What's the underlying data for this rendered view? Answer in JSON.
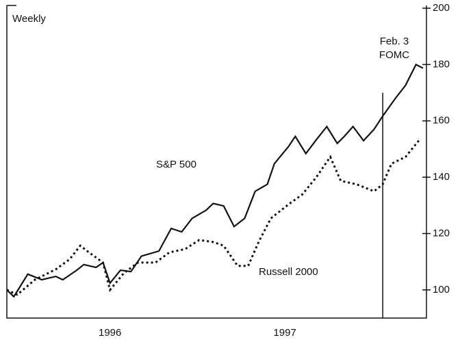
{
  "chart_data": {
    "type": "line",
    "title": "Weekly",
    "series": [
      {
        "name": "S&P 500",
        "color": "#111",
        "dash": "solid",
        "x": [
          1995.91,
          1995.95,
          1996.03,
          1996.11,
          1996.19,
          1996.23,
          1996.31,
          1996.35,
          1996.42,
          1996.46,
          1996.5,
          1996.56,
          1996.62,
          1996.68,
          1996.78,
          1996.85,
          1996.91,
          1996.97,
          1997.05,
          1997.09,
          1997.15,
          1997.21,
          1997.27,
          1997.33,
          1997.4,
          1997.44,
          1997.52,
          1997.56,
          1997.62,
          1997.68,
          1997.74,
          1997.8,
          1997.84,
          1997.89,
          1997.95,
          1998.01,
          1998.06,
          1998.13,
          1998.19,
          1998.25,
          1998.29
        ],
        "values": [
          100,
          97.6,
          105.6,
          103.6,
          104.8,
          103.6,
          107,
          109,
          108,
          109.7,
          102.4,
          107,
          106.5,
          112,
          113.8,
          121.8,
          120.6,
          125.4,
          128.3,
          130.7,
          129.8,
          122.5,
          125.4,
          135,
          137.5,
          144.8,
          150.8,
          154.5,
          148.4,
          153.3,
          158,
          152,
          154.5,
          158,
          153,
          157,
          161.7,
          167.8,
          172.6,
          180,
          178.7
        ]
      },
      {
        "name": "Russell 2000",
        "color": "#111",
        "dash": "dotted",
        "x": [
          1995.91,
          1995.97,
          1996.07,
          1996.19,
          1996.27,
          1996.33,
          1996.38,
          1996.46,
          1996.5,
          1996.58,
          1996.66,
          1996.76,
          1996.84,
          1996.93,
          1997.01,
          1997.09,
          1997.15,
          1997.23,
          1997.29,
          1997.35,
          1997.42,
          1997.52,
          1997.6,
          1997.68,
          1997.76,
          1997.82,
          1997.91,
          1998.01,
          1998.06,
          1998.11,
          1998.19,
          1998.27
        ],
        "values": [
          100,
          98.3,
          103.6,
          107.3,
          110.9,
          115.7,
          113.3,
          109.7,
          100,
          106,
          109.7,
          109.7,
          113.3,
          114.5,
          117.7,
          117,
          115.7,
          108.5,
          108.5,
          117,
          125.4,
          130.3,
          133.9,
          140,
          147.2,
          138.7,
          137.5,
          135,
          137.5,
          144.8,
          147.2,
          153.3
        ]
      }
    ],
    "xlim": [
      1995.91,
      1998.31
    ],
    "xticks": [
      {
        "value": 1996.5,
        "label": "1996"
      },
      {
        "value": 1997.5,
        "label": "1997"
      }
    ],
    "ylim": [
      90,
      200
    ],
    "yticks": [
      100,
      120,
      140,
      160,
      180,
      200
    ],
    "annotation": {
      "lines": [
        "Feb. 3",
        "FOMC"
      ],
      "x": 1998.06,
      "top": 170
    }
  }
}
